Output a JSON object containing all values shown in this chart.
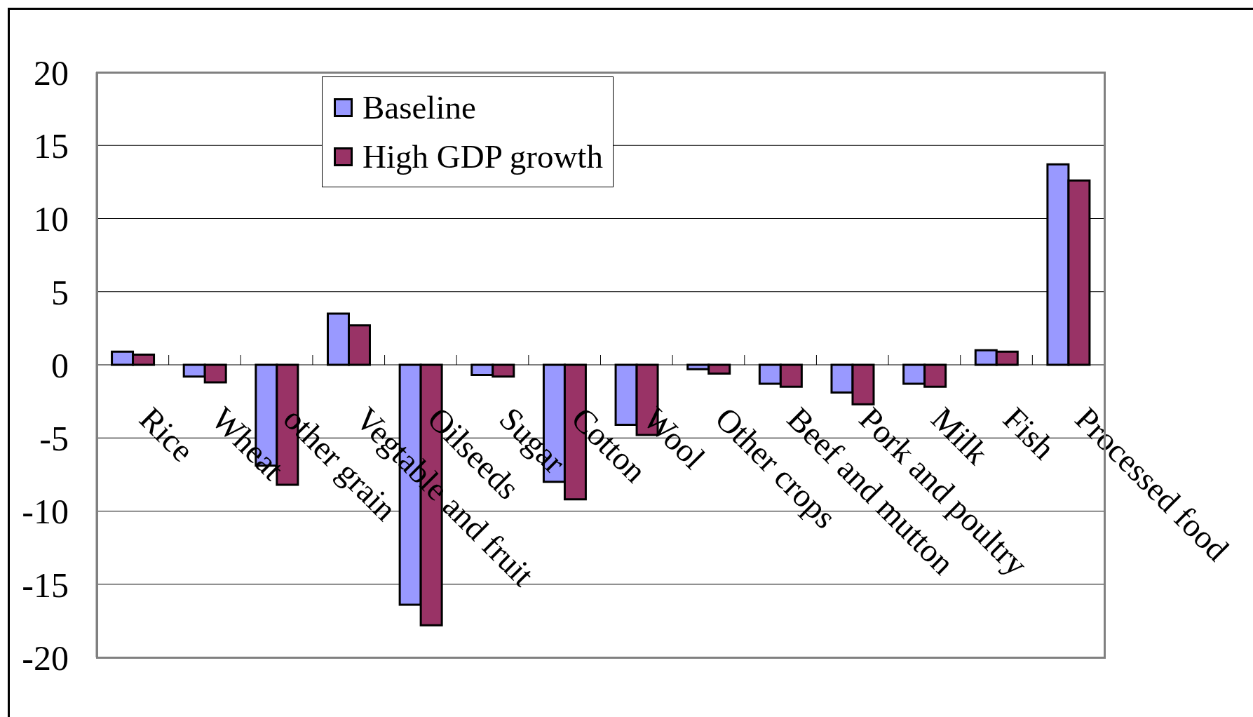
{
  "chart_data": {
    "type": "bar",
    "categories": [
      "Rice",
      "Wheat",
      "other grain",
      "Vegtable and fruit",
      "Oilseeds",
      "Sugar",
      "Cotton",
      "Wool",
      "Other crops",
      "Beef and mutton",
      "Pork and poultry",
      "Milk",
      "Fish",
      "Processed food"
    ],
    "series": [
      {
        "name": "Baseline",
        "color": "#9999ff",
        "values": [
          0.9,
          -0.8,
          -6.9,
          3.5,
          -16.4,
          -0.7,
          -8.0,
          -4.1,
          -0.3,
          -1.3,
          -1.9,
          -1.3,
          1.0,
          13.7
        ]
      },
      {
        "name": "High GDP growth",
        "color": "#993366",
        "values": [
          0.7,
          -1.2,
          -8.2,
          2.7,
          -17.8,
          -0.8,
          -9.2,
          -4.8,
          -0.6,
          -1.5,
          -2.7,
          -1.5,
          0.9,
          12.6
        ]
      }
    ],
    "ylim": [
      -20,
      20
    ],
    "yticks": [
      -20,
      -15,
      -10,
      -5,
      0,
      5,
      10,
      15,
      20
    ],
    "grid": "y",
    "legend": "top left"
  }
}
